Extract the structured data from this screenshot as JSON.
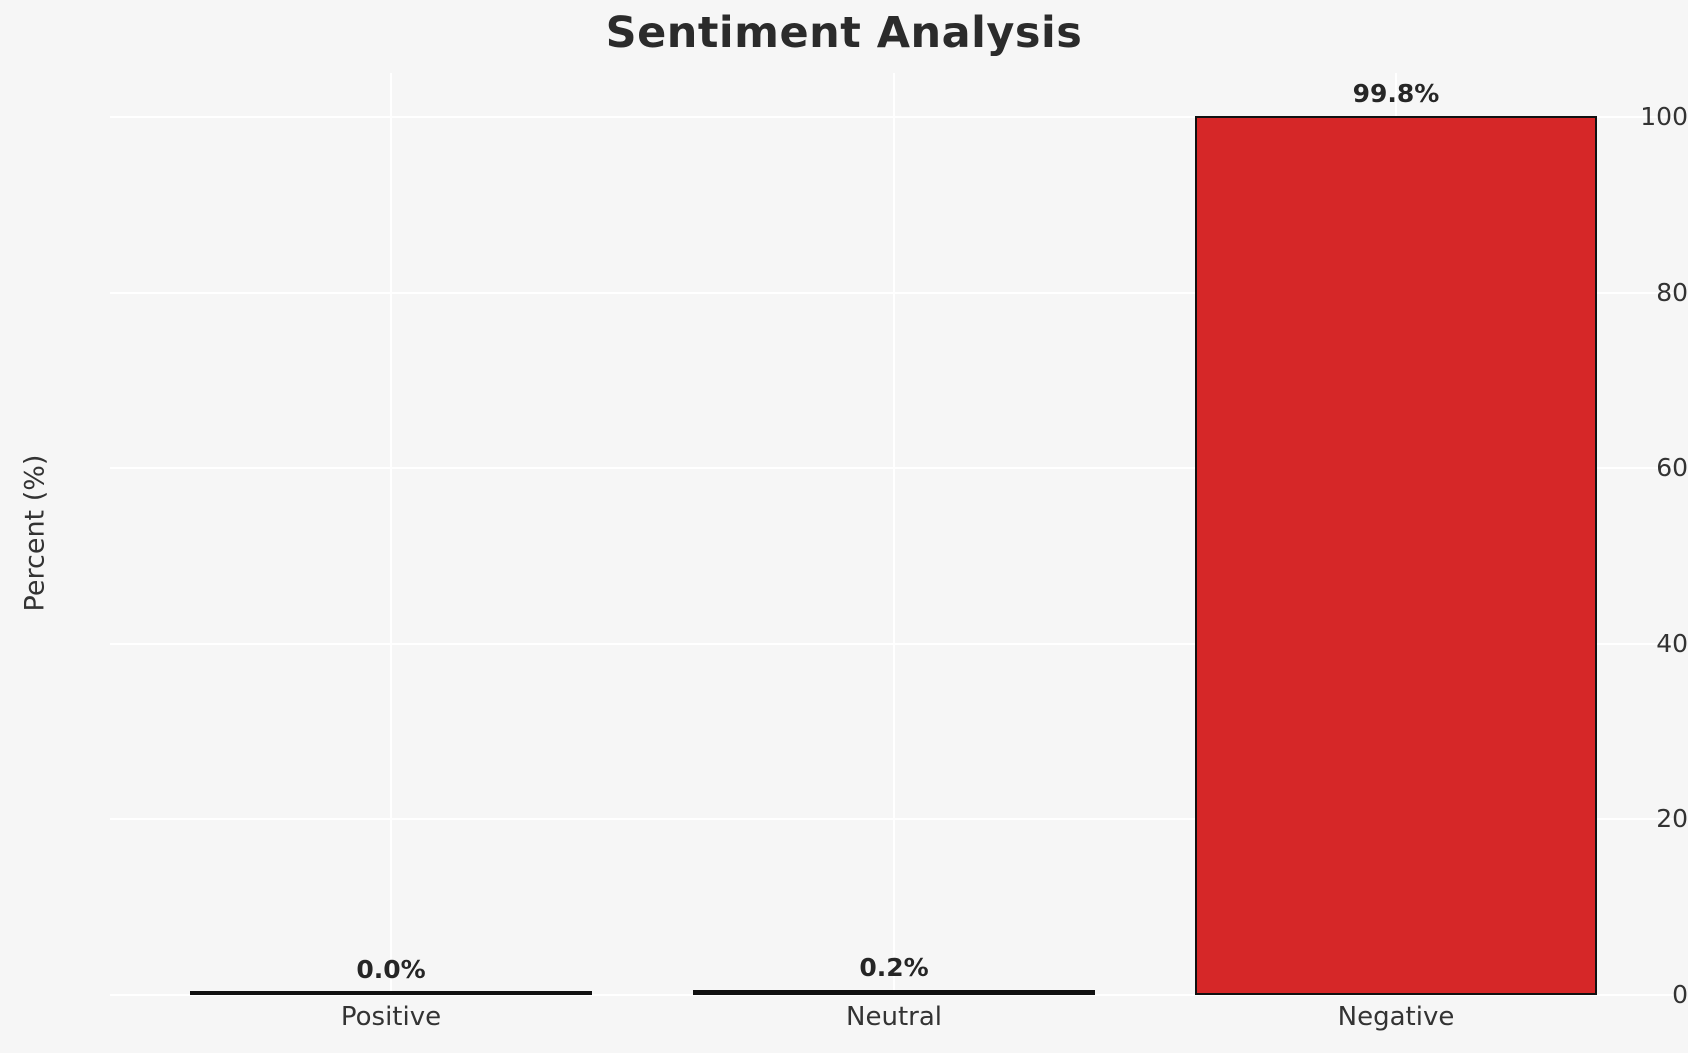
{
  "chart_data": {
    "type": "bar",
    "title": "Sentiment Analysis",
    "xlabel": "",
    "ylabel": "Percent (%)",
    "categories": [
      "Positive",
      "Neutral",
      "Negative"
    ],
    "values": [
      0.0,
      0.2,
      99.8
    ],
    "value_labels": [
      "0.0%",
      "0.2%",
      "99.8%"
    ],
    "bar_colors": [
      "#111111",
      "#111111",
      "#d62728"
    ],
    "bar_edge_color": "#111111",
    "yticks": [
      0,
      20,
      40,
      60,
      80,
      100
    ],
    "ylim": [
      0,
      105
    ],
    "grid": true,
    "grid_color": "#ffffff",
    "background_color": "#f6f6f6",
    "legend_position": "none"
  }
}
